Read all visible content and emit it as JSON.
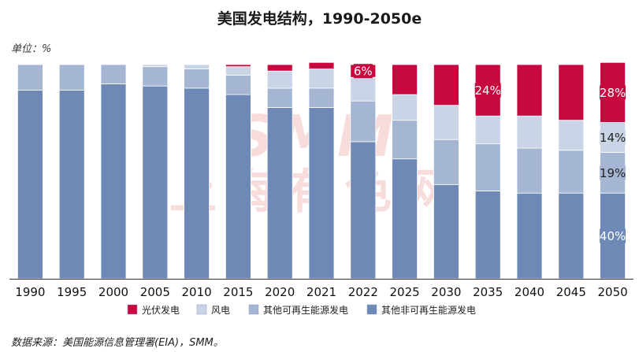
{
  "title": "美国发电结构，1990-2050e",
  "unit_label": "单位：%",
  "source": "数据来源：美国能源信息管理署(EIA)，SMM。",
  "watermark": {
    "en": "SMM",
    "cn": "上海有色网"
  },
  "chart_data": {
    "type": "bar",
    "stacked": true,
    "percent": true,
    "title": "美国发电结构，1990-2050e",
    "ylabel": "单位：%",
    "ylim": [
      0,
      100
    ],
    "grid": false,
    "legend_position": "bottom",
    "categories": [
      "1990",
      "1995",
      "2000",
      "2005",
      "2010",
      "2015",
      "2020",
      "2021",
      "2022",
      "2025",
      "2030",
      "2035",
      "2040",
      "2045",
      "2050"
    ],
    "series": [
      {
        "name": "其他非可再生能源发电",
        "color": "#6e89b6",
        "values": [
          88,
          88,
          91,
          90,
          89,
          86,
          80,
          80,
          64,
          56,
          44,
          41,
          40,
          40,
          40
        ]
      },
      {
        "name": "其他可再生能源发电",
        "color": "#a5b6d2",
        "values": [
          12,
          12,
          9,
          9,
          9,
          9,
          9,
          9,
          19,
          18,
          21,
          22,
          21,
          20,
          19
        ]
      },
      {
        "name": "风电",
        "color": "#c9d4e6",
        "values": [
          0,
          0,
          0,
          1,
          2,
          4,
          8,
          9,
          11,
          12,
          16,
          13,
          15,
          14,
          14
        ]
      },
      {
        "name": "光伏发电",
        "color": "#c8093f",
        "values": [
          0,
          0,
          0,
          0,
          0,
          1,
          3,
          3,
          6,
          14,
          19,
          24,
          24,
          26,
          28
        ]
      }
    ],
    "data_labels": [
      {
        "category": "2022",
        "series": "光伏发电",
        "text": "6%"
      },
      {
        "category": "2035",
        "series": "光伏发电",
        "text": "24%"
      },
      {
        "category": "2050",
        "series": "光伏发电",
        "text": "28%"
      },
      {
        "category": "2050",
        "series": "风电",
        "text": "14%"
      },
      {
        "category": "2050",
        "series": "其他可再生能源发电",
        "text": "19%"
      },
      {
        "category": "2050",
        "series": "其他非可再生能源发电",
        "text": "40%"
      }
    ],
    "legend_order": [
      "光伏发电",
      "风电",
      "其他可再生能源发电",
      "其他非可再生能源发电"
    ]
  }
}
